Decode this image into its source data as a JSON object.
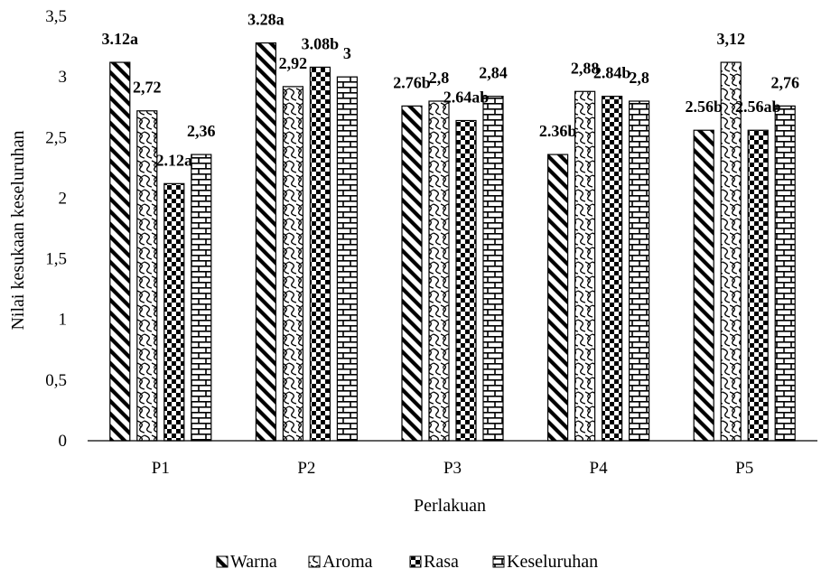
{
  "chart_data": {
    "type": "bar",
    "categories": [
      "P1",
      "P2",
      "P3",
      "P4",
      "P5"
    ],
    "series": [
      {
        "name": "Warna",
        "values": [
          3.12,
          3.28,
          2.76,
          2.36,
          2.56
        ],
        "labels": [
          "3.12a",
          "3.28a",
          "2.76b",
          "2.36b",
          "2.56b"
        ],
        "pattern": "diag-thick"
      },
      {
        "name": "Aroma",
        "values": [
          2.72,
          2.92,
          2.8,
          2.88,
          3.12
        ],
        "labels": [
          "2,72",
          "2,92",
          "2,8",
          "2,88",
          "3,12"
        ],
        "pattern": "wave"
      },
      {
        "name": "Rasa",
        "values": [
          2.12,
          3.08,
          2.64,
          2.84,
          2.56
        ],
        "labels": [
          "2.12a",
          "3.08b",
          "2.64ab",
          "2.84b",
          "2.56ab"
        ],
        "pattern": "checker"
      },
      {
        "name": "Keseluruhan",
        "values": [
          2.36,
          3.0,
          2.84,
          2.8,
          2.76
        ],
        "labels": [
          "2,36",
          "3",
          "2,84",
          "2,8",
          "2,76"
        ],
        "pattern": "brick"
      }
    ],
    "y_ticks": [
      "0",
      "0,5",
      "1",
      "1,5",
      "2",
      "2,5",
      "3",
      "3,5"
    ],
    "ylim": [
      0,
      3.5
    ],
    "xlabel": "Perlakuan",
    "ylabel": "Nilai kesukaan keseluruhan",
    "legend_position": "bottom",
    "grid": false,
    "colors": {
      "bar_stroke": "#000000",
      "axis": "#000000",
      "background": "#ffffff"
    }
  }
}
